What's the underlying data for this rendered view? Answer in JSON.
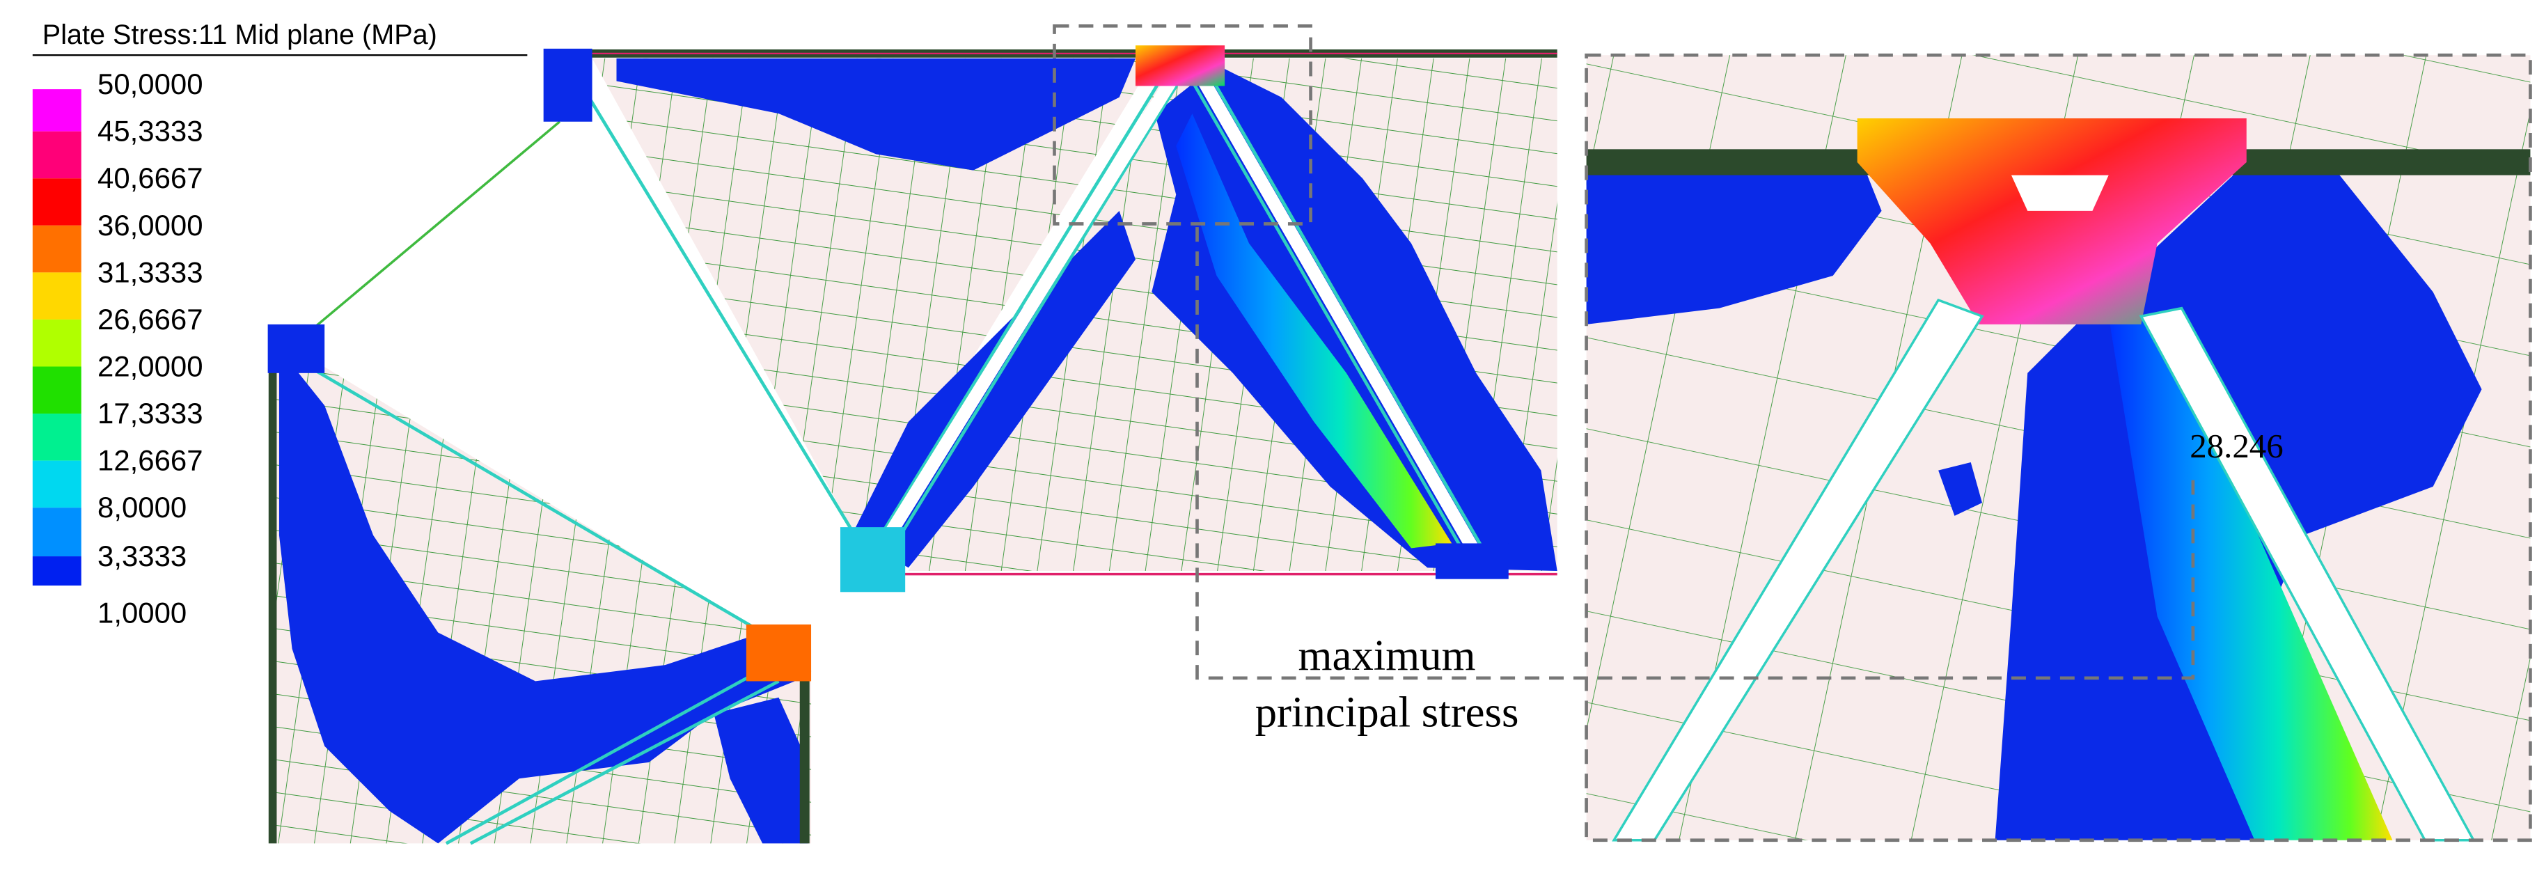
{
  "legend": {
    "title": "Plate Stress:11 Mid plane (MPa)",
    "labels": [
      "50,0000",
      "45,3333",
      "40,6667",
      "36,0000",
      "31,3333",
      "26,6667",
      "22,0000",
      "17,3333",
      "12,6667",
      "8,0000",
      "3,3333",
      "1,0000"
    ]
  },
  "annotations": {
    "callout_value": "28.246",
    "label_line1": "maximum",
    "label_line2": "principal stress"
  }
}
